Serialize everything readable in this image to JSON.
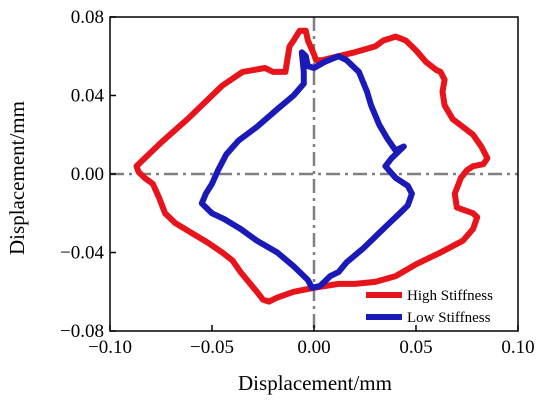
{
  "chart_data": {
    "type": "line",
    "title": "",
    "xlabel": "Displacement/mm",
    "ylabel": "Displacement/mm",
    "xlim": [
      -0.1,
      0.1
    ],
    "ylim": [
      -0.08,
      0.08
    ],
    "xticks": [
      -0.1,
      -0.05,
      0.0,
      0.05,
      0.1
    ],
    "yticks": [
      -0.08,
      -0.04,
      0.0,
      0.04,
      0.08
    ],
    "xtick_labels": [
      "−0.10",
      "−0.05",
      "0.00",
      "0.05",
      "0.10"
    ],
    "ytick_labels": [
      "−0.08",
      "−0.04",
      "0.00",
      "0.04",
      "0.08"
    ],
    "reference_lines": {
      "x": 0,
      "y": 0,
      "style": "dash-dot",
      "color": "#808080"
    },
    "grid": false,
    "legend_position": "bottom-right",
    "series": [
      {
        "name": "High Stiffness",
        "color": "#e8141b",
        "points": [
          [
            -0.087,
            0.004
          ],
          [
            -0.075,
            0.016
          ],
          [
            -0.062,
            0.028
          ],
          [
            -0.045,
            0.045
          ],
          [
            -0.035,
            0.052
          ],
          [
            -0.024,
            0.054
          ],
          [
            -0.02,
            0.052
          ],
          [
            -0.014,
            0.052
          ],
          [
            -0.012,
            0.065
          ],
          [
            -0.01,
            0.068
          ],
          [
            -0.007,
            0.073
          ],
          [
            -0.004,
            0.073
          ],
          [
            -0.003,
            0.068
          ],
          [
            0.0,
            0.061
          ],
          [
            0.001,
            0.058
          ],
          [
            0.004,
            0.058
          ],
          [
            0.012,
            0.06
          ],
          [
            0.02,
            0.062
          ],
          [
            0.03,
            0.065
          ],
          [
            0.034,
            0.068
          ],
          [
            0.04,
            0.07
          ],
          [
            0.045,
            0.068
          ],
          [
            0.05,
            0.063
          ],
          [
            0.055,
            0.057
          ],
          [
            0.06,
            0.053
          ],
          [
            0.062,
            0.052
          ],
          [
            0.064,
            0.048
          ],
          [
            0.063,
            0.042
          ],
          [
            0.064,
            0.035
          ],
          [
            0.068,
            0.028
          ],
          [
            0.073,
            0.024
          ],
          [
            0.078,
            0.02
          ],
          [
            0.082,
            0.014
          ],
          [
            0.085,
            0.008
          ],
          [
            0.083,
            0.005
          ],
          [
            0.078,
            0.004
          ],
          [
            0.075,
            0.002
          ],
          [
            0.072,
            -0.002
          ],
          [
            0.069,
            -0.01
          ],
          [
            0.07,
            -0.017
          ],
          [
            0.078,
            -0.02
          ],
          [
            0.08,
            -0.022
          ],
          [
            0.078,
            -0.028
          ],
          [
            0.073,
            -0.034
          ],
          [
            0.062,
            -0.04
          ],
          [
            0.058,
            -0.042
          ],
          [
            0.05,
            -0.046
          ],
          [
            0.04,
            -0.052
          ],
          [
            0.03,
            -0.055
          ],
          [
            0.02,
            -0.056
          ],
          [
            0.012,
            -0.056
          ],
          [
            0.0,
            -0.058
          ],
          [
            -0.01,
            -0.06
          ],
          [
            -0.018,
            -0.063
          ],
          [
            -0.022,
            -0.065
          ],
          [
            -0.025,
            -0.064
          ],
          [
            -0.028,
            -0.06
          ],
          [
            -0.032,
            -0.055
          ],
          [
            -0.036,
            -0.05
          ],
          [
            -0.04,
            -0.044
          ],
          [
            -0.045,
            -0.04
          ],
          [
            -0.052,
            -0.035
          ],
          [
            -0.06,
            -0.03
          ],
          [
            -0.068,
            -0.025
          ],
          [
            -0.073,
            -0.02
          ],
          [
            -0.076,
            -0.012
          ],
          [
            -0.079,
            -0.005
          ],
          [
            -0.083,
            -0.002
          ],
          [
            -0.086,
            0.001
          ],
          [
            -0.087,
            0.004
          ]
        ]
      },
      {
        "name": "Low Stiffness",
        "color": "#1a1ab8",
        "points": [
          [
            -0.005,
            0.052
          ],
          [
            -0.006,
            0.062
          ],
          [
            -0.004,
            0.06
          ],
          [
            -0.003,
            0.055
          ],
          [
            0.0,
            0.054
          ],
          [
            0.005,
            0.057
          ],
          [
            0.012,
            0.06
          ],
          [
            0.016,
            0.058
          ],
          [
            0.022,
            0.052
          ],
          [
            0.026,
            0.042
          ],
          [
            0.028,
            0.035
          ],
          [
            0.032,
            0.025
          ],
          [
            0.036,
            0.018
          ],
          [
            0.04,
            0.012
          ],
          [
            0.044,
            0.014
          ],
          [
            0.038,
            0.008
          ],
          [
            0.035,
            0.004
          ],
          [
            0.04,
            -0.002
          ],
          [
            0.046,
            -0.006
          ],
          [
            0.048,
            -0.01
          ],
          [
            0.046,
            -0.016
          ],
          [
            0.042,
            -0.02
          ],
          [
            0.036,
            -0.026
          ],
          [
            0.03,
            -0.032
          ],
          [
            0.024,
            -0.038
          ],
          [
            0.016,
            -0.045
          ],
          [
            0.012,
            -0.05
          ],
          [
            0.008,
            -0.052
          ],
          [
            0.003,
            -0.057
          ],
          [
            -0.001,
            -0.058
          ],
          [
            -0.003,
            -0.054
          ],
          [
            -0.01,
            -0.047
          ],
          [
            -0.018,
            -0.04
          ],
          [
            -0.028,
            -0.034
          ],
          [
            -0.036,
            -0.028
          ],
          [
            -0.044,
            -0.023
          ],
          [
            -0.05,
            -0.02
          ],
          [
            -0.055,
            -0.015
          ],
          [
            -0.053,
            -0.01
          ],
          [
            -0.05,
            -0.005
          ],
          [
            -0.047,
            0.002
          ],
          [
            -0.043,
            0.01
          ],
          [
            -0.037,
            0.017
          ],
          [
            -0.028,
            0.024
          ],
          [
            -0.018,
            0.033
          ],
          [
            -0.01,
            0.04
          ],
          [
            -0.005,
            0.046
          ],
          [
            -0.005,
            0.052
          ]
        ]
      }
    ]
  }
}
